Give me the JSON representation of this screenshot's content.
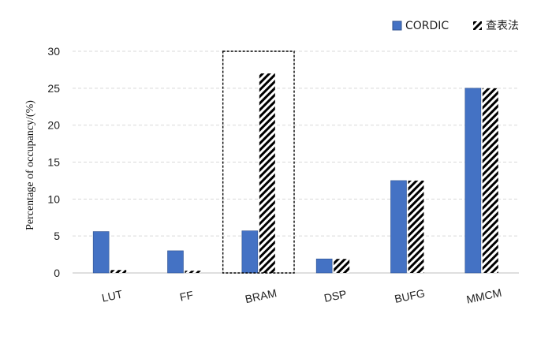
{
  "chart_data": {
    "type": "bar",
    "categories": [
      "LUT",
      "FF",
      "BRAM",
      "DSP",
      "BUFG",
      "MMCM"
    ],
    "series": [
      {
        "name": "CORDIC",
        "values": [
          5.6,
          3.0,
          5.7,
          1.9,
          12.5,
          25.0
        ],
        "color": "#4472C4",
        "pattern": "solid"
      },
      {
        "name": "查表法",
        "values": [
          0.4,
          0.3,
          27.0,
          1.9,
          12.5,
          25.0
        ],
        "color": "#000000",
        "pattern": "diagonal-hatch"
      }
    ],
    "ylabel": "Percentage of occupancy/(%)",
    "ylim": [
      0,
      30
    ],
    "yticks": [
      0,
      5,
      10,
      15,
      20,
      25,
      30
    ],
    "grid": true,
    "legend_position": "top-right",
    "highlight_category": "BRAM"
  }
}
